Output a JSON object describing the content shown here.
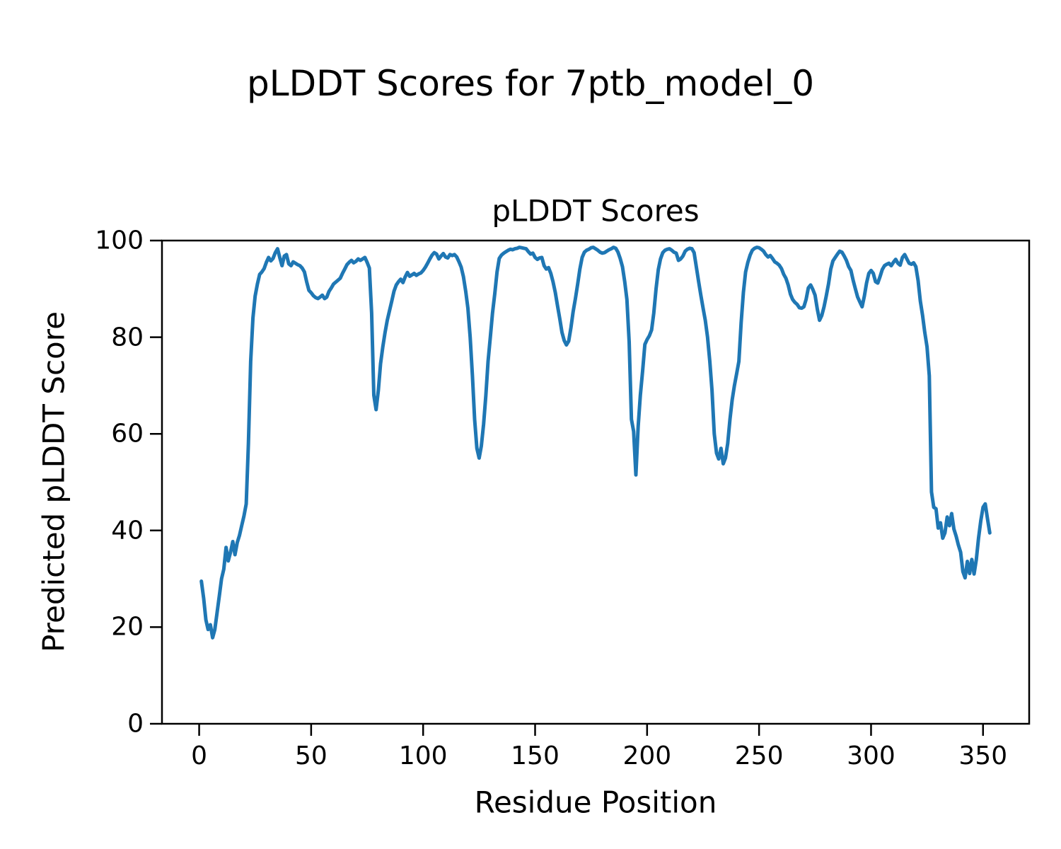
{
  "figure": {
    "suptitle": "pLDDT Scores for 7ptb_model_0",
    "background_color": "#ffffff",
    "text_color": "#000000"
  },
  "chart_data": {
    "type": "line",
    "title": "pLDDT Scores",
    "xlabel": "Residue Position",
    "ylabel": "Predicted pLDDT Score",
    "xlim": [
      -16.6,
      370.6
    ],
    "ylim": [
      0,
      100
    ],
    "xticks": [
      0,
      50,
      100,
      150,
      200,
      250,
      300,
      350
    ],
    "yticks": [
      0,
      20,
      40,
      60,
      80,
      100
    ],
    "grid": false,
    "legend": "none",
    "line_color": "#1f77b4",
    "line_width": 5,
    "axis_color": "#000000",
    "series": [
      {
        "name": "pLDDT",
        "x_start": 1,
        "x_step": 1,
        "values": [
          29.5,
          26,
          21.5,
          19.5,
          20.5,
          17.8,
          19.5,
          23,
          26.5,
          30,
          32,
          36.5,
          33.7,
          35.5,
          37.7,
          35.0,
          37.5,
          39,
          41,
          43,
          45.5,
          58,
          75,
          84,
          88.5,
          91,
          93,
          93.5,
          94.2,
          95.5,
          96.5,
          95.8,
          96.3,
          97.5,
          98.3,
          96.5,
          94.8,
          96.8,
          97.1,
          95.2,
          94.8,
          95.6,
          95.3,
          95.0,
          94.8,
          94.3,
          93.5,
          91.5,
          89.7,
          89.2,
          88.6,
          88.2,
          88.0,
          88.3,
          88.7,
          88.0,
          88.3,
          89.5,
          90.2,
          91.0,
          91.4,
          91.8,
          92.2,
          93.2,
          94.1,
          95.0,
          95.5,
          95.9,
          95.4,
          95.7,
          96.2,
          95.9,
          96.2,
          96.5,
          95.5,
          94.3,
          85,
          68,
          65.0,
          69,
          74.5,
          78,
          81,
          83.5,
          85.5,
          87.5,
          89.5,
          90.8,
          91.5,
          92.0,
          91.3,
          92.5,
          93.4,
          92.6,
          92.9,
          93.2,
          92.8,
          93.1,
          93.3,
          93.8,
          94.5,
          95.3,
          96.2,
          97.0,
          97.5,
          97.2,
          96.2,
          96.8,
          97.3,
          96.6,
          96.4,
          97.1,
          96.9,
          97.1,
          96.6,
          95.6,
          94.5,
          92.5,
          89.5,
          86.0,
          80,
          72,
          63,
          57,
          55.0,
          57.5,
          62,
          68,
          75,
          80,
          85,
          89,
          93.5,
          96.3,
          97.0,
          97.4,
          97.7,
          98.0,
          98.2,
          98.1,
          98.3,
          98.4,
          98.6,
          98.5,
          98.4,
          98.3,
          97.7,
          97.2,
          97.4,
          96.5,
          96.1,
          96.4,
          96.5,
          94.8,
          94.1,
          94.4,
          93.2,
          91.5,
          89.3,
          86.5,
          83.9,
          81,
          79.3,
          78.4,
          79.2,
          82,
          85.3,
          88,
          91,
          94.1,
          96.5,
          97.6,
          98.0,
          98.2,
          98.5,
          98.6,
          98.3,
          98.0,
          97.6,
          97.4,
          97.5,
          97.8,
          98.1,
          98.3,
          98.6,
          98.4,
          97.6,
          96.3,
          94.6,
          91.5,
          87.8,
          79,
          63,
          60.5,
          51.5,
          61.5,
          68,
          73,
          78.5,
          79.5,
          80.3,
          81.5,
          85,
          90,
          94,
          96.2,
          97.5,
          98.0,
          98.2,
          98.3,
          98.0,
          97.6,
          97.4,
          95.9,
          96.2,
          96.8,
          97.8,
          98.2,
          98.4,
          98.3,
          97.5,
          94.5,
          91.5,
          88.7,
          86,
          83.5,
          80,
          75,
          69,
          60,
          56,
          54.8,
          57,
          53.8,
          55,
          58,
          63,
          67,
          70,
          72.5,
          75,
          83,
          89.3,
          93.5,
          95.5,
          97,
          98,
          98.4,
          98.6,
          98.5,
          98.2,
          97.8,
          97.1,
          96.6,
          96.9,
          96.3,
          95.6,
          95.3,
          94.9,
          94.2,
          93.0,
          92.2,
          90.8,
          88.9,
          87.8,
          87.2,
          86.8,
          86.1,
          86.0,
          86.3,
          87.8,
          90.2,
          90.8,
          89.9,
          88.7,
          85.8,
          83.5,
          84.5,
          86.3,
          88.5,
          91,
          94.1,
          95.8,
          96.5,
          97.2,
          97.8,
          97.6,
          96.8,
          95.9,
          94.6,
          93.8,
          91.8,
          90,
          88.3,
          87.3,
          86.3,
          88.5,
          91.2,
          93.2,
          93.8,
          93.2,
          91.5,
          91.2,
          92.5,
          94.0,
          94.8,
          95.1,
          95.3,
          94.8,
          95.5,
          96.1,
          95.3,
          94.9,
          96.5,
          97.1,
          96.2,
          95.3,
          95.1,
          95.4,
          94.6,
          91.7,
          87.5,
          84.5,
          81,
          78,
          72,
          48,
          44.8,
          44.5,
          40.5,
          41.6,
          38.4,
          39.5,
          42.8,
          41.0,
          43.5,
          40.3,
          38.8,
          37,
          35.5,
          31.5,
          30.2,
          33.6,
          31.1,
          34,
          31,
          34,
          38.4,
          42,
          44.8,
          45.5,
          42.4,
          39.5
        ]
      }
    ]
  }
}
